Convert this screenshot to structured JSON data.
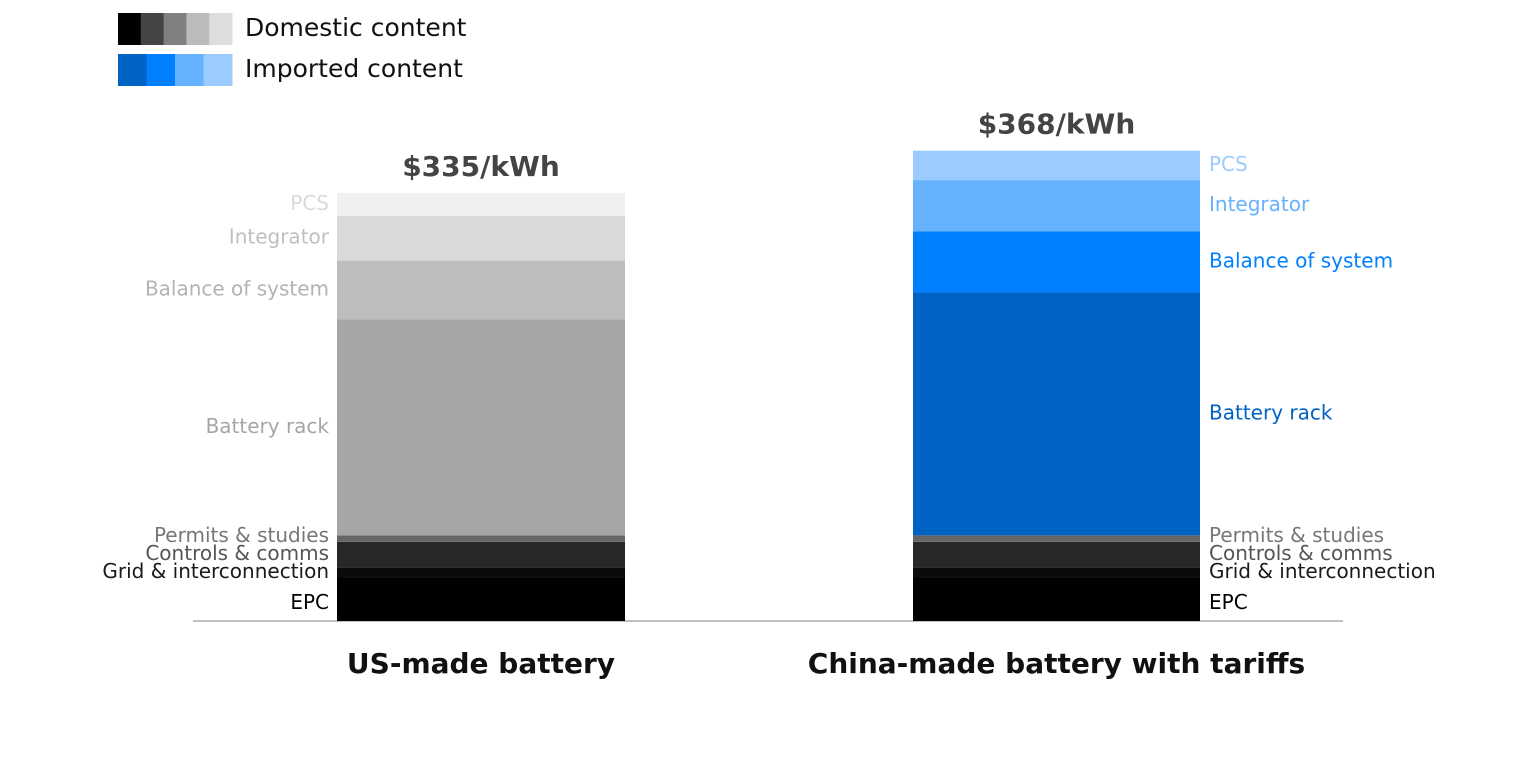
{
  "chart_data": {
    "type": "stacked_bar",
    "categories": [
      "US-made battery",
      "China-made battery with tariffs"
    ],
    "totals": [
      335,
      368
    ],
    "total_labels": [
      "$335/kWh",
      "$368/kWh"
    ],
    "series": [
      {
        "name": "EPC",
        "colors": [
          "#000000",
          "#000000"
        ],
        "label_colors": [
          "#000000",
          "#000000"
        ],
        "values": [
          34,
          34
        ]
      },
      {
        "name": "Grid & interconnection",
        "colors": [
          "#0b0b0b",
          "#0b0b0b"
        ],
        "label_colors": [
          "#1a1a1a",
          "#1a1a1a"
        ],
        "values": [
          8,
          8
        ]
      },
      {
        "name": "Controls & comms",
        "colors": [
          "#282828",
          "#282828"
        ],
        "label_colors": [
          "#555555",
          "#555555"
        ],
        "values": [
          20,
          20
        ]
      },
      {
        "name": "Permits & studies",
        "colors": [
          "#666666",
          "#666666"
        ],
        "label_colors": [
          "#777777",
          "#777777"
        ],
        "values": [
          5,
          5
        ]
      },
      {
        "name": "Battery rack",
        "colors": [
          "#a6a6a6",
          "#0062c2"
        ],
        "label_colors": [
          "#a6a6a6",
          "#0062c2"
        ],
        "values": [
          169,
          190
        ]
      },
      {
        "name": "Balance of system",
        "colors": [
          "#bdbdbd",
          "#0080ff"
        ],
        "label_colors": [
          "#b3b3b3",
          "#0080ff"
        ],
        "values": [
          46,
          48
        ]
      },
      {
        "name": "Integrator",
        "colors": [
          "#d9d9d9",
          "#66b2ff"
        ],
        "label_colors": [
          "#bfbfbf",
          "#66b2ff"
        ],
        "values": [
          35,
          40
        ]
      },
      {
        "name": "PCS",
        "colors": [
          "#f0f0f0",
          "#9ccbff"
        ],
        "label_colors": [
          "#d9d9d9",
          "#9ccbff"
        ],
        "values": [
          18,
          23
        ]
      }
    ],
    "legend": [
      {
        "label": "Domestic content",
        "swatches": [
          "#000000",
          "#444444",
          "#808080",
          "#bbbbbb",
          "#dddddd"
        ]
      },
      {
        "label": "Imported content",
        "swatches": [
          "#0062c2",
          "#0080ff",
          "#66b2ff",
          "#9ccbff"
        ]
      }
    ]
  }
}
